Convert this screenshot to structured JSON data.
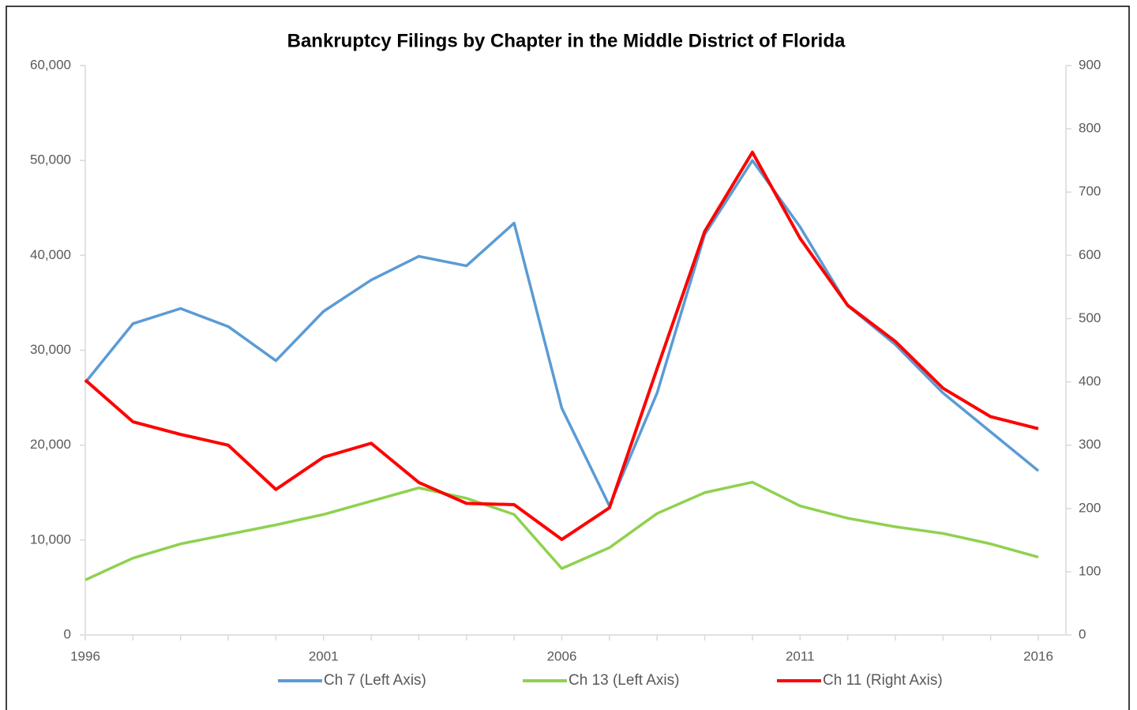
{
  "chart_data": {
    "type": "line",
    "title": "Bankruptcy Filings by Chapter in the Middle District of Florida",
    "categories": [
      "1996",
      null,
      null,
      null,
      null,
      "2001",
      null,
      null,
      null,
      null,
      "2006",
      null,
      null,
      null,
      null,
      "2011",
      null,
      null,
      null,
      null,
      "2016"
    ],
    "series": [
      {
        "name": "Ch 7 (Left Axis)",
        "color": "#5b9bd5",
        "values": [
          26600,
          32800,
          34400,
          32500,
          28900,
          34100,
          37400,
          39900,
          38900,
          43400,
          23900,
          13600,
          25500,
          42200,
          50000,
          43000,
          34700,
          30600,
          25500,
          21400,
          17300
        ]
      },
      {
        "name": "Ch 13 (Left Axis)",
        "color": "#8fd14f",
        "values": [
          5800,
          8100,
          9600,
          10600,
          11600,
          12700,
          14100,
          15500,
          14400,
          12700,
          7000,
          9200,
          12800,
          15000,
          16100,
          13600,
          12300,
          11400,
          10700,
          9600,
          8200
        ]
      },
      {
        "name": "Ch 11 (Right Axis)",
        "color": "#ff0000",
        "axis": "y2",
        "values": [
          403,
          337,
          317,
          300,
          230,
          281,
          303,
          241,
          208,
          206,
          151,
          201,
          421,
          638,
          763,
          627,
          521,
          464,
          390,
          345,
          326
        ]
      }
    ],
    "ylim": [
      0,
      60000
    ],
    "yticks": [
      0,
      {
        "value": 10000,
        "label": "10,000"
      },
      {
        "value": 20000,
        "label": "20,000"
      },
      {
        "value": 30000,
        "label": "30,000"
      },
      {
        "value": 40000,
        "label": "40,000"
      },
      {
        "value": 50000,
        "label": "50,000"
      },
      {
        "value": 60000,
        "label": "60,000"
      }
    ],
    "y2lim": [
      0,
      900
    ],
    "y2ticks": [
      0,
      100,
      200,
      300,
      400,
      500,
      600,
      700,
      800,
      900
    ],
    "grid": false,
    "legend": "bottom"
  }
}
